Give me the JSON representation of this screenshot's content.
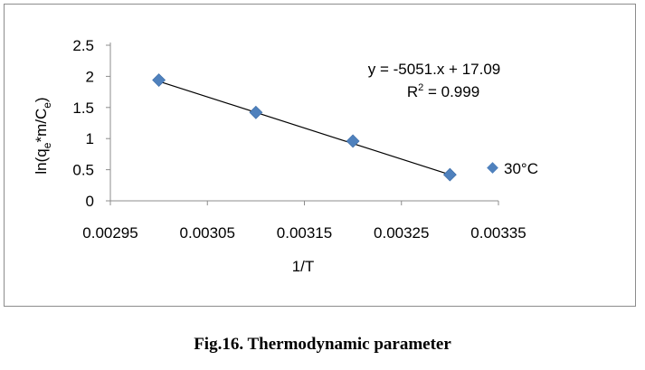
{
  "caption": "Fig.16. Thermodynamic parameter",
  "chart_data": {
    "type": "scatter",
    "xlabel": "1/T",
    "ylabel_parts": [
      "ln(q",
      "e",
      "*m/C",
      "e",
      ")"
    ],
    "xlim": [
      0.00295,
      0.00335
    ],
    "ylim": [
      0,
      2.5
    ],
    "x_ticks": [
      "0.00295",
      "0.00305",
      "0.00315",
      "0.00325",
      "0.00335"
    ],
    "y_ticks": [
      "0",
      "0.5",
      "1",
      "1.5",
      "2",
      "2.5"
    ],
    "grid": false,
    "legend_position": "right",
    "series": [
      {
        "name": "30°C",
        "color": "#4f81bd",
        "marker": "diamond",
        "points": [
          {
            "x": 0.003,
            "y": 1.94
          },
          {
            "x": 0.0031,
            "y": 1.42
          },
          {
            "x": 0.0032,
            "y": 0.96
          },
          {
            "x": 0.0033,
            "y": 0.42
          }
        ]
      }
    ],
    "trendline": {
      "type": "linear",
      "x_range": [
        0.003,
        0.0033
      ],
      "y_range": [
        1.92,
        0.42
      ],
      "color": "#000000",
      "equation": "y = -5051.x + 17.09",
      "r2_prefix": "R",
      "r2_sup": "2",
      "r2_suffix": " = 0.999"
    }
  }
}
